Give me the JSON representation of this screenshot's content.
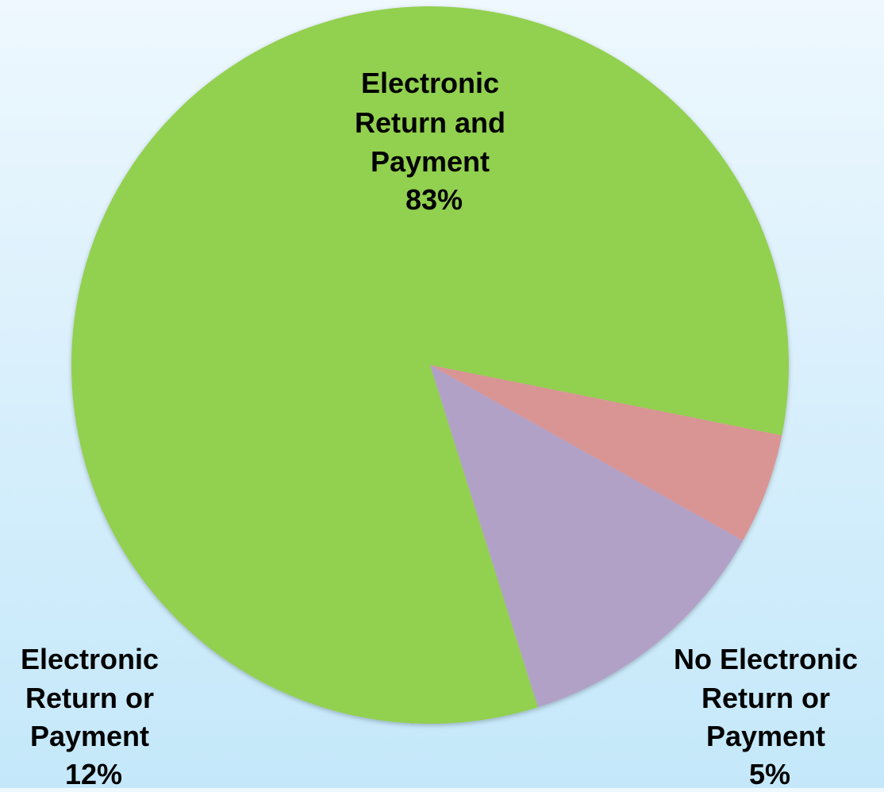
{
  "chart_data": {
    "type": "pie",
    "title": "",
    "slices": [
      {
        "label_lines": [
          "Electronic",
          "Return and",
          "Payment"
        ],
        "value": 83,
        "value_label": "83%",
        "color": "#92d050"
      },
      {
        "label_lines": [
          "No Electronic",
          "Return or",
          "Payment"
        ],
        "value": 5,
        "value_label": "5%",
        "color": "#d99594"
      },
      {
        "label_lines": [
          "Electronic",
          "Return or",
          "Payment"
        ],
        "value": 12,
        "value_label": "12%",
        "color": "#b2a1c7"
      }
    ],
    "legend": "none"
  }
}
